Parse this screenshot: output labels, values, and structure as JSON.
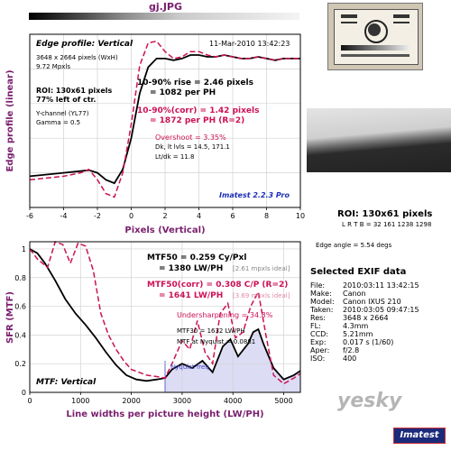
{
  "file_title": "gj.JPG",
  "chart_data": [
    {
      "type": "line",
      "title": "Edge profile: Vertical",
      "xlabel": "Pixels (Vertical)",
      "ylabel": "Edge profile (linear)",
      "xlim": [
        -6,
        10
      ],
      "xticks": [
        -6,
        -4,
        -2,
        0,
        2,
        4,
        6,
        8,
        10
      ],
      "grid": true,
      "series": [
        {
          "key": "raw",
          "color": "#000000",
          "x": [
            -6,
            -5,
            -4,
            -3,
            -2.5,
            -2,
            -1.5,
            -1,
            -0.5,
            0,
            0.5,
            1,
            1.5,
            2,
            2.5,
            3,
            3.5,
            4,
            4.5,
            5,
            5.5,
            6,
            6.5,
            7,
            7.5,
            8,
            8.5,
            9,
            9.5,
            10
          ],
          "y": [
            0.18,
            0.19,
            0.2,
            0.21,
            0.215,
            0.2,
            0.16,
            0.14,
            0.22,
            0.4,
            0.66,
            0.81,
            0.86,
            0.86,
            0.85,
            0.86,
            0.88,
            0.88,
            0.87,
            0.87,
            0.88,
            0.87,
            0.86,
            0.86,
            0.87,
            0.86,
            0.85,
            0.86,
            0.86,
            0.86
          ]
        },
        {
          "key": "corr",
          "color": "#cc1155",
          "x": [
            -6,
            -5,
            -4,
            -3,
            -2.5,
            -2,
            -1.5,
            -1,
            -0.5,
            0,
            0.5,
            1,
            1.5,
            2,
            2.5,
            3,
            3.5,
            4,
            4.5,
            5,
            5.5,
            6,
            6.5,
            7,
            7.5,
            8,
            8.5,
            9,
            9.5,
            10
          ],
          "y": [
            0.16,
            0.17,
            0.18,
            0.2,
            0.22,
            0.16,
            0.08,
            0.06,
            0.2,
            0.48,
            0.82,
            0.95,
            0.96,
            0.9,
            0.86,
            0.87,
            0.9,
            0.9,
            0.88,
            0.87,
            0.88,
            0.87,
            0.86,
            0.86,
            0.87,
            0.86,
            0.85,
            0.86,
            0.86,
            0.86
          ]
        }
      ]
    },
    {
      "type": "line",
      "title": "MTF: Vertical",
      "xlabel": "Line widths per picture height (LW/PH)",
      "ylabel": "SFR (MTF)",
      "xlim": [
        0,
        5328
      ],
      "ylim": [
        0,
        1.05
      ],
      "xticks": [
        0,
        1000,
        2000,
        3000,
        4000,
        5000
      ],
      "yticks": [
        0,
        0.2,
        0.4,
        0.6,
        0.8,
        1
      ],
      "grid": true,
      "nyquist_x": 2664,
      "series": [
        {
          "key": "mtf",
          "color": "#000000",
          "x": [
            0,
            150,
            300,
            500,
            700,
            900,
            1100,
            1300,
            1500,
            1700,
            1900,
            2100,
            2300,
            2500,
            2664,
            2800,
            3000,
            3200,
            3400,
            3600,
            3800,
            3950,
            4100,
            4300,
            4400,
            4500,
            4600,
            4800,
            5000,
            5200,
            5328
          ],
          "y": [
            1,
            0.97,
            0.9,
            0.78,
            0.65,
            0.55,
            0.47,
            0.38,
            0.28,
            0.19,
            0.12,
            0.09,
            0.08,
            0.09,
            0.1,
            0.16,
            0.2,
            0.17,
            0.22,
            0.14,
            0.32,
            0.37,
            0.25,
            0.34,
            0.42,
            0.44,
            0.34,
            0.17,
            0.09,
            0.12,
            0.15
          ]
        },
        {
          "key": "corr",
          "color": "#cc1155",
          "x": [
            0,
            150,
            350,
            500,
            650,
            800,
            950,
            1100,
            1250,
            1400,
            1550,
            1700,
            1850,
            2000,
            2150,
            2300,
            2500,
            2664,
            2800,
            3000,
            3150,
            3300,
            3450,
            3600,
            3750,
            3900,
            4050,
            4200,
            4350,
            4500,
            4650,
            4800,
            5000,
            5200,
            5328
          ],
          "y": [
            1,
            0.93,
            0.87,
            1.05,
            1.03,
            0.9,
            1.04,
            1.02,
            0.85,
            0.55,
            0.4,
            0.3,
            0.22,
            0.16,
            0.14,
            0.12,
            0.11,
            0.1,
            0.2,
            0.36,
            0.3,
            0.5,
            0.28,
            0.2,
            0.55,
            0.62,
            0.38,
            0.42,
            0.6,
            0.7,
            0.4,
            0.12,
            0.06,
            0.1,
            0.13
          ]
        }
      ]
    }
  ],
  "edge": {
    "title": "Edge profile: Vertical",
    "date": "11-Mar-2010 13:42:23",
    "dims": "3648 x 2664 pixels (WxH)",
    "mpxls": "9.72 Mpxls",
    "roi": "ROI: 130x61 pixels",
    "roi_loc": "77% left of ctr.",
    "channel": "Y-channel (YL77)",
    "gamma": "Gamma = 0.5",
    "rise": "10-90% rise = 2.46 pixels",
    "rise_ph": "= 1082 per PH",
    "rise_corr": "10-90%(corr) = 1.42 pixels",
    "rise_corr_ph": "= 1872 per PH  (R=2)",
    "overshoot": "Overshoot = 3.35%",
    "dk_lt": "Dk, lt lvls = 14.5, 171.1",
    "ltdk": "Lt/dk = 11.8",
    "version": "Imatest 2.2.3 Pro"
  },
  "mtf": {
    "title": "MTF: Vertical",
    "mtf50": "MTF50 = 0.259 Cy/Pxl",
    "mtf50_lw": "= 1380 LW/PH",
    "mtf50_ideal": "[2.61 mpxls ideal]",
    "mtf50c": "MTF50(corr) = 0.308 C/P  (R=2)",
    "mtf50c_lw": "= 1641 LW/PH",
    "mtf50c_ideal": "[3.69 mpxls ideal]",
    "undersharp": "Undersharpening = 34.8%",
    "mtf30": "MTF30 = 1632 LW/PH",
    "nyq_val": "MTF at Nyquist = 0.0881",
    "nyquist_label": "Nyquist freq."
  },
  "side": {
    "roi": "ROI: 130x61 pixels",
    "coords": "L R T B = 32 161  1238 1298",
    "edge_angle": "Edge angle = 5.54 degs",
    "exif_title": "Selected EXIF data",
    "exif": [
      {
        "k": "File:",
        "v": "2010:03:11 13:42:15"
      },
      {
        "k": "Make:",
        "v": "Canon"
      },
      {
        "k": "Model:",
        "v": "Canon IXUS 210"
      },
      {
        "k": "Taken:",
        "v": "2010:03:05 09:47:15"
      },
      {
        "k": "Res:",
        "v": "3648 x 2664"
      },
      {
        "k": "FL:",
        "v": "4.3mm"
      },
      {
        "k": "CCD:",
        "v": "5.21mm"
      },
      {
        "k": "Exp:",
        "v": "0.017 s  (1/60)"
      },
      {
        "k": "Aper:",
        "v": "f/2.8"
      },
      {
        "k": "ISO:",
        "v": "400"
      }
    ],
    "logo": "Imatest",
    "watermark": "yesky"
  },
  "colors": {
    "accent": "#7a1f6e",
    "corr": "#cc1155",
    "title": "#7a1f6e",
    "nyquist_fill": "#dcdcf4",
    "nyquist_text": "#4444cc",
    "version": "#1a2eb8"
  }
}
